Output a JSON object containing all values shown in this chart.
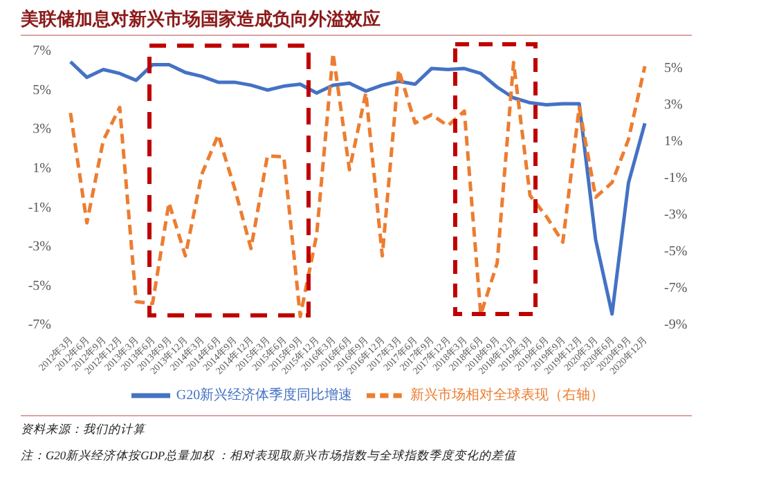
{
  "chart_data": {
    "type": "line",
    "title": "美联储加息对新兴市场国家造成负向外溢效应",
    "categories": [
      "2012年3月",
      "2012年6月",
      "2012年9月",
      "2012年12月",
      "2013年3月",
      "2013年6月",
      "2013年9月",
      "2013年12月",
      "2014年3月",
      "2014年6月",
      "2014年9月",
      "2014年12月",
      "2015年3月",
      "2015年6月",
      "2015年9月",
      "2015年12月",
      "2016年3月",
      "2016年6月",
      "2016年9月",
      "2016年12月",
      "2017年3月",
      "2017年6月",
      "2017年9月",
      "2017年12月",
      "2018年3月",
      "2018年6月",
      "2018年9月",
      "2018年12月",
      "2019年3月",
      "2019年6月",
      "2019年9月",
      "2019年12月",
      "2020年3月",
      "2020年6月",
      "2020年9月",
      "2020年12月"
    ],
    "series": [
      {
        "name": "G20新兴经济体季度同比增速",
        "color": "#4472c4",
        "line_style": "solid",
        "values": [
          6.4,
          5.6,
          6.0,
          5.8,
          5.45,
          6.25,
          6.25,
          5.85,
          5.65,
          5.35,
          5.35,
          5.2,
          4.95,
          5.15,
          5.25,
          4.8,
          5.2,
          5.3,
          4.9,
          5.2,
          5.4,
          5.25,
          6.05,
          6.0,
          6.05,
          5.8,
          5.1,
          4.55,
          4.3,
          4.2,
          4.25,
          4.25,
          -2.7,
          -6.5,
          0.2,
          3.25
        ]
      },
      {
        "name": "新兴市场相对全球表现（右轴）",
        "color": "#ed7d31",
        "line_style": "dashed",
        "axis": "y2",
        "values": [
          2.5,
          -3.5,
          1.0,
          2.8,
          -7.8,
          -7.9,
          -2.4,
          -5.3,
          -0.85,
          1.3,
          -1.6,
          -4.9,
          0.15,
          0.1,
          -8.6,
          -4.15,
          5.75,
          -0.6,
          3.6,
          -5.3,
          4.85,
          1.95,
          2.4,
          1.8,
          2.6,
          -8.5,
          -5.7,
          5.25,
          -2.0,
          -3.15,
          -4.55,
          2.8,
          -2.1,
          -1.3,
          1.05,
          5.05
        ]
      }
    ],
    "marker": "none",
    "ylim": [
      -7,
      8
    ],
    "yticks": [
      {
        "value": -7,
        "label": "-7%"
      },
      {
        "value": -5,
        "label": "-5%"
      },
      {
        "value": -3,
        "label": "-3%"
      },
      {
        "value": -1,
        "label": "-1%"
      },
      {
        "value": 1,
        "label": "1%"
      },
      {
        "value": 3,
        "label": "3%"
      },
      {
        "value": 5,
        "label": "5%"
      },
      {
        "value": 7,
        "label": "7%"
      }
    ],
    "y2lim": [
      -9,
      7
    ],
    "y2ticks": [
      {
        "value": -9,
        "label": "-9%"
      },
      {
        "value": -7,
        "label": "-7%"
      },
      {
        "value": -5,
        "label": "-5%"
      },
      {
        "value": -3,
        "label": "-3%"
      },
      {
        "value": -1,
        "label": "-1%"
      },
      {
        "value": 1,
        "label": "1%"
      },
      {
        "value": 3,
        "label": "3%"
      },
      {
        "value": 5,
        "label": "5%"
      }
    ],
    "legend": "bottom",
    "annotations": [
      "资料来源：我们的计算",
      "注：G20新兴经济体按GDP总量加权 ：相对表现取新兴市场指数与全球指数季度变化的差值"
    ]
  }
}
